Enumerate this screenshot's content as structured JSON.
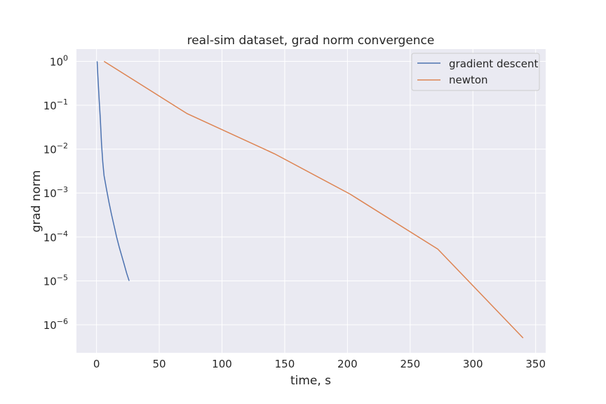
{
  "chart_data": {
    "type": "line",
    "title": "real-sim dataset, grad norm convergence",
    "xlabel": "time, s",
    "ylabel": "grad norm",
    "xlim": [
      -16,
      358
    ],
    "ylim": [
      2.3e-07,
      1.9
    ],
    "yscale": "log",
    "grid": true,
    "legend_position": "top-right",
    "background_color": "#eaeaf2",
    "grid_color": "#ffffff",
    "x_ticks": [
      0,
      50,
      100,
      150,
      200,
      250,
      300,
      350
    ],
    "x_tick_labels": [
      "0",
      "50",
      "100",
      "150",
      "200",
      "250",
      "300",
      "350"
    ],
    "y_ticks": [
      1,
      0.1,
      0.01,
      0.001,
      0.0001,
      1e-05,
      1e-06
    ],
    "y_tick_labels": [
      {
        "base": "10",
        "exp": "0"
      },
      {
        "base": "10",
        "exp": "−1"
      },
      {
        "base": "10",
        "exp": "−2"
      },
      {
        "base": "10",
        "exp": "−3"
      },
      {
        "base": "10",
        "exp": "−4"
      },
      {
        "base": "10",
        "exp": "−5"
      },
      {
        "base": "10",
        "exp": "−6"
      }
    ],
    "series": [
      {
        "name": "gradient descent",
        "color": "#4c72b0",
        "x": [
          0.5,
          1,
          2,
          3,
          4,
          5,
          6,
          8,
          10,
          12,
          14,
          16,
          18,
          20,
          22,
          24,
          26
        ],
        "y": [
          1.0,
          0.5,
          0.15,
          0.05,
          0.013,
          0.005,
          0.0025,
          0.0012,
          0.0006,
          0.00032,
          0.00018,
          0.0001,
          6e-05,
          3.8e-05,
          2.4e-05,
          1.5e-05,
          1e-05
        ]
      },
      {
        "name": "newton",
        "color": "#dd8452",
        "x": [
          6,
          72,
          142,
          202,
          272,
          340
        ],
        "y": [
          1.0,
          0.065,
          0.0078,
          0.00095,
          5.3e-05,
          5e-07
        ]
      }
    ]
  }
}
